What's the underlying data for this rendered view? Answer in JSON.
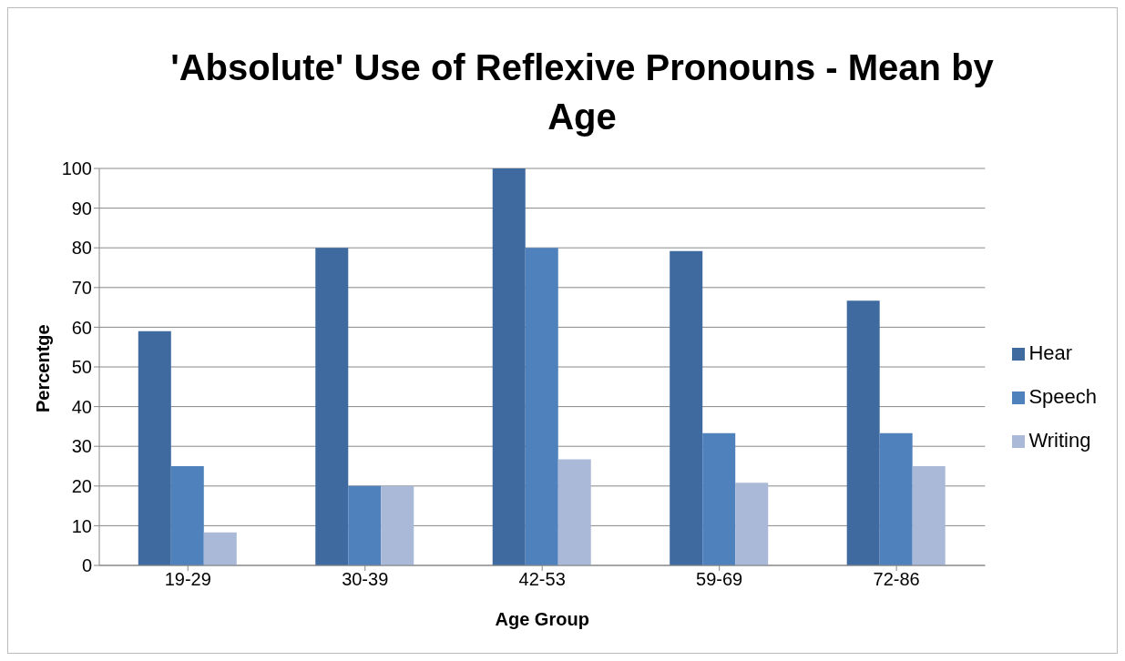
{
  "chart_data": {
    "type": "bar",
    "title": "'Absolute' Use of Reflexive Pronouns - Mean by Age",
    "xlabel": "Age Group",
    "ylabel": "Percentge",
    "categories": [
      "19-29",
      "30-39",
      "42-53",
      "59-69",
      "72-86"
    ],
    "series": [
      {
        "name": "Hear",
        "color": "#3f6a9f",
        "values": [
          59,
          80,
          100,
          79.2,
          66.7
        ]
      },
      {
        "name": "Speech",
        "color": "#4f81bd",
        "values": [
          25,
          20,
          80,
          33.3,
          33.3
        ]
      },
      {
        "name": "Writing",
        "color": "#aab9d8",
        "values": [
          8.3,
          20,
          26.7,
          20.8,
          25
        ]
      }
    ],
    "ylim": [
      0,
      100
    ],
    "yticks": [
      0,
      10,
      20,
      30,
      40,
      50,
      60,
      70,
      80,
      90,
      100
    ],
    "grid": "y",
    "legend": "right"
  }
}
